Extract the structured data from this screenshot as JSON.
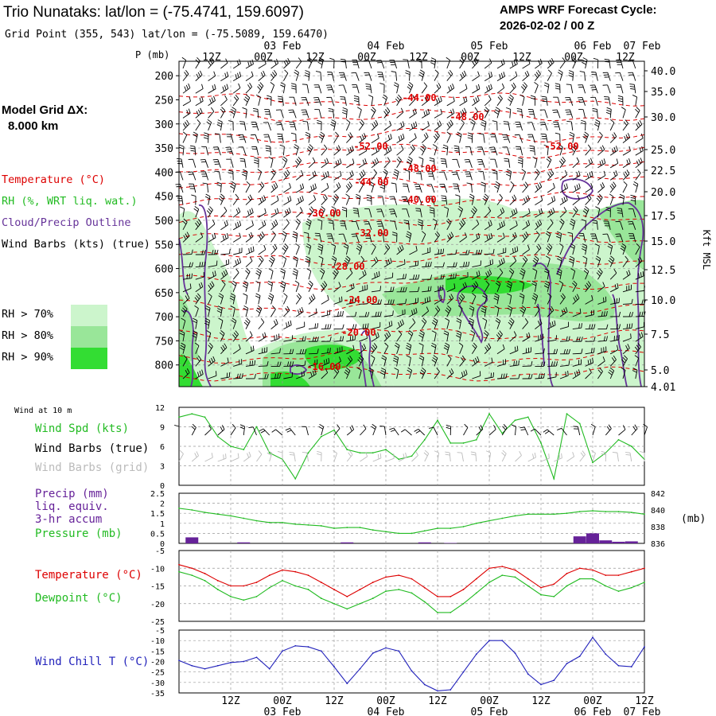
{
  "header": {
    "title": "Trio Nunataks:  lat/lon = (-75.4741, 159.6097)",
    "grid_point": "Grid Point (355, 543) lat/lon = (-75.5089, 159.6470)",
    "cycle_label": "AMPS WRF Forecast Cycle:",
    "cycle_value": "2026-02-02 / 00  Z"
  },
  "time_axis": {
    "ticks": [
      "12Z",
      "00Z",
      "12Z",
      "00Z",
      "12Z",
      "00Z",
      "12Z",
      "00Z",
      "12Z",
      "00Z"
    ],
    "dates": [
      "03 Feb",
      "04 Feb",
      "05 Feb",
      "06 Feb",
      "07 Feb"
    ]
  },
  "side_labels": {
    "model_grid": "Model Grid ΔX:",
    "model_grid_value": "8.000 km",
    "temperature": "Temperature (°C)",
    "rh": "RH (%, WRT liq. wat.)",
    "cloud": "Cloud/Precip Outline",
    "wind_barbs": "Wind Barbs (kts) (true)",
    "rh_legend": [
      "RH > 70%",
      "RH > 80%",
      "RH > 90%"
    ],
    "p_axis_title": "P (mb)",
    "height_axis_title": "Kft MSL",
    "wind10": "Wind at 10 m",
    "wind_spd": "Wind Spd (kts)",
    "wind_barbs_true": "Wind Barbs (true)",
    "wind_barbs_grid": "Wind Barbs (grid)",
    "precip_lines": [
      "Precip (mm)",
      "liq. equiv.",
      "3-hr accum"
    ],
    "pressure": "Pressure (mb)",
    "mb_unit": "(mb)",
    "temp2": "Temperature (°C)",
    "dewpoint": "Dewpoint (°C)",
    "windchill": "Wind Chill T (°C)"
  },
  "colors": {
    "temperature": "#dd0000",
    "rh70": "#ccf5cc",
    "rh80": "#99e699",
    "rh90": "#33dd33",
    "cloud": "#663399",
    "wind_spd": "#22bb22",
    "wind_grid": "#bbbbbb",
    "precip": "#662299",
    "pressure": "#22bb22",
    "windchill": "#2222bb",
    "grid": "#999999"
  },
  "chart_data": [
    {
      "type": "line",
      "title": "Vertical cross-section: temperature contours, RH shading, wind barbs",
      "ylabel": "P (mb)",
      "y2label": "Kft MSL",
      "yticks": [
        200,
        250,
        300,
        350,
        400,
        450,
        500,
        550,
        600,
        650,
        700,
        750,
        800
      ],
      "y2ticks": [
        "40.0",
        "35.0",
        "30.0",
        "25.0",
        "22.5",
        "20.0",
        "17.5",
        "15.0",
        "12.5",
        "10.0",
        "7.5",
        "5.0",
        "4.01"
      ],
      "ylim": [
        170,
        845
      ],
      "contour_labels": [
        "-44.00",
        "-48.00",
        "-52.00",
        "-52.00",
        "-48.00",
        "-44.00",
        "-40.00",
        "-36.00",
        "-32.00",
        "-28.00",
        "-24.00",
        "-20.00",
        "-16.00"
      ]
    },
    {
      "type": "line",
      "title": "Wind at 10 m",
      "ylabel": "Wind Spd (kts)",
      "yticks": [
        0,
        3,
        6,
        9,
        12
      ],
      "ylim": [
        0,
        12
      ],
      "x": [
        0,
        3,
        6,
        9,
        12,
        15,
        18,
        21,
        24,
        27,
        30,
        33,
        36,
        39,
        42,
        45,
        48,
        51,
        54,
        57,
        60,
        63,
        66,
        69,
        72,
        75,
        78,
        81,
        84,
        87,
        90,
        93,
        96,
        99,
        102,
        105,
        108
      ],
      "series": [
        {
          "name": "Wind Spd (kts)",
          "values": [
            10.5,
            11,
            10.5,
            7.5,
            6,
            5.5,
            9,
            5,
            4,
            1,
            5,
            7.5,
            8.5,
            5.5,
            5,
            5,
            5.5,
            4,
            4.5,
            7,
            10,
            6.5,
            6.5,
            7,
            11,
            8,
            10,
            10.5,
            6.5,
            1,
            11,
            9.5,
            3.5,
            5,
            7,
            6,
            4
          ]
        }
      ]
    },
    {
      "type": "bar",
      "title": "Precip (mm) liq. equiv. 3-hr accum",
      "ylabel": "Precip (mm)",
      "yticks": [
        0.0,
        0.5,
        1.0,
        1.5,
        2.0,
        2.5
      ],
      "ylim": [
        0,
        2.5
      ],
      "x": [
        3,
        15,
        39,
        57,
        63,
        93,
        96,
        99,
        102,
        105
      ],
      "values": [
        0.3,
        0.05,
        0.05,
        0.05,
        0.02,
        0.35,
        0.5,
        0.15,
        0.08,
        0.1
      ]
    },
    {
      "type": "line",
      "title": "Pressure (mb)",
      "ylabel": "Pressure (mb)",
      "yticks": [
        836,
        838,
        840,
        842
      ],
      "ylim": [
        836,
        842
      ],
      "x": [
        0,
        3,
        6,
        9,
        12,
        15,
        18,
        21,
        24,
        27,
        30,
        33,
        36,
        39,
        42,
        45,
        48,
        51,
        54,
        57,
        60,
        63,
        66,
        69,
        72,
        75,
        78,
        81,
        84,
        87,
        90,
        93,
        96,
        99,
        102,
        105,
        108
      ],
      "series": [
        {
          "name": "Pressure (mb)",
          "values": [
            840.2,
            840,
            839.7,
            839.5,
            839.3,
            839,
            838.7,
            838.5,
            838.5,
            838.3,
            838.2,
            838.1,
            837.8,
            837.9,
            837.9,
            837.6,
            837.4,
            837.2,
            837.2,
            837.5,
            837.8,
            837.8,
            838,
            838.4,
            838.7,
            839,
            839.3,
            839.5,
            839.5,
            839.5,
            839.6,
            839.8,
            839.9,
            839.8,
            839.8,
            839.7,
            839.5
          ]
        }
      ]
    },
    {
      "type": "line",
      "title": "Temperature and Dewpoint (°C)",
      "ylabel": "Temperature (°C)",
      "yticks": [
        -5,
        -10,
        -15,
        -20,
        -25
      ],
      "ylim": [
        -25,
        -5
      ],
      "x": [
        0,
        3,
        6,
        9,
        12,
        15,
        18,
        21,
        24,
        27,
        30,
        33,
        36,
        39,
        42,
        45,
        48,
        51,
        54,
        57,
        60,
        63,
        66,
        69,
        72,
        75,
        78,
        81,
        84,
        87,
        90,
        93,
        96,
        99,
        102,
        105,
        108
      ],
      "series": [
        {
          "name": "Temperature (°C)",
          "values": [
            -9,
            -10,
            -11.5,
            -13.5,
            -15,
            -15,
            -14,
            -12,
            -10.5,
            -11,
            -12,
            -14,
            -16,
            -18,
            -16,
            -14,
            -12.5,
            -12,
            -13,
            -15.5,
            -18,
            -18,
            -16,
            -13,
            -10,
            -9.5,
            -10.5,
            -13,
            -15.5,
            -14.5,
            -11.5,
            -10,
            -10.5,
            -12,
            -12,
            -11,
            -10
          ]
        },
        {
          "name": "Dewpoint (°C)",
          "values": [
            -11,
            -12,
            -13.5,
            -16,
            -18,
            -19,
            -18,
            -15.5,
            -13.5,
            -15,
            -16,
            -18.5,
            -20,
            -21.5,
            -20,
            -18.5,
            -16.5,
            -16,
            -17,
            -19.5,
            -22.5,
            -22.5,
            -20,
            -17,
            -14,
            -12,
            -12.5,
            -15,
            -17.5,
            -18,
            -15,
            -13,
            -13,
            -15,
            -16.5,
            -15.5,
            -14
          ]
        }
      ]
    },
    {
      "type": "line",
      "title": "Wind Chill T (°C)",
      "ylabel": "Wind Chill T (°C)",
      "yticks": [
        -5,
        -10,
        -15,
        -20,
        -25,
        -30,
        -35
      ],
      "ylim": [
        -35,
        -5
      ],
      "x": [
        0,
        3,
        6,
        9,
        12,
        15,
        18,
        21,
        24,
        27,
        30,
        33,
        36,
        39,
        42,
        45,
        48,
        51,
        54,
        57,
        60,
        63,
        66,
        69,
        72,
        75,
        78,
        81,
        84,
        87,
        90,
        93,
        96,
        99,
        102,
        105,
        108
      ],
      "series": [
        {
          "name": "Wind Chill T (°C)",
          "values": [
            -19.5,
            -22,
            -23.5,
            -22,
            -20.5,
            -20,
            -18,
            -23.5,
            -15,
            -12.5,
            -13,
            -15,
            -22.5,
            -30.5,
            -23.5,
            -16,
            -13.5,
            -15,
            -24.5,
            -31,
            -34,
            -33.5,
            -25,
            -16.5,
            -10,
            -10,
            -16,
            -26,
            -31,
            -29,
            -21,
            -17.5,
            -8.5,
            -16.5,
            -22,
            -22.5,
            -13
          ]
        }
      ]
    }
  ]
}
